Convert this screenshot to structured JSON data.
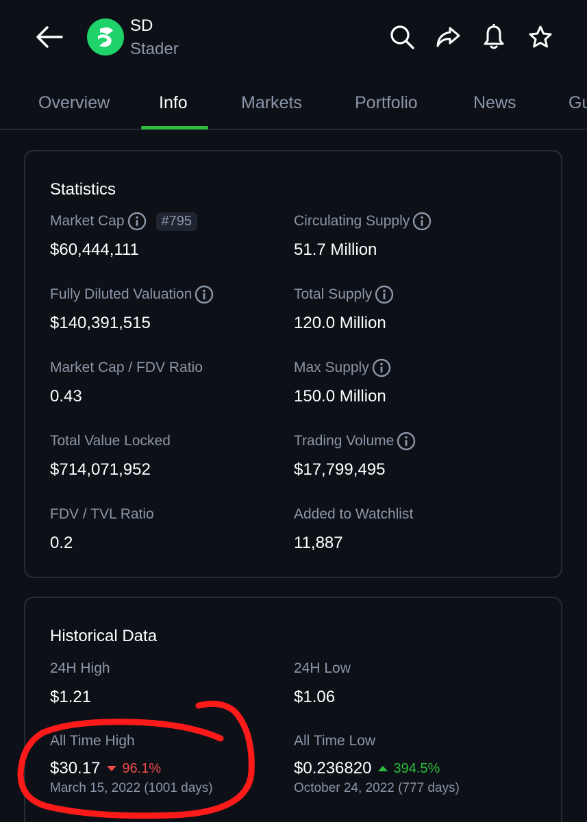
{
  "header": {
    "ticker": "SD",
    "name": "Stader",
    "brand_color": "#1fd36a",
    "icons": [
      "back-arrow-icon",
      "search-icon",
      "share-icon",
      "bell-icon",
      "star-icon"
    ]
  },
  "tabs": [
    {
      "label": "Overview",
      "active": false
    },
    {
      "label": "Info",
      "active": true
    },
    {
      "label": "Markets",
      "active": false
    },
    {
      "label": "Portfolio",
      "active": false
    },
    {
      "label": "News",
      "active": false
    },
    {
      "label": "Gu",
      "active": false
    }
  ],
  "accent_color": "#2ebd3d",
  "statistics": {
    "title": "Statistics",
    "market_cap": {
      "label": "Market Cap",
      "rank": "#795",
      "value": "$60,444,111"
    },
    "circulating_supply": {
      "label": "Circulating Supply",
      "value": "51.7 Million"
    },
    "fdv": {
      "label": "Fully Diluted Valuation",
      "value": "$140,391,515"
    },
    "total_supply": {
      "label": "Total Supply",
      "value": "120.0 Million"
    },
    "mc_fdv_ratio": {
      "label": "Market Cap / FDV Ratio",
      "value": "0.43"
    },
    "max_supply": {
      "label": "Max Supply",
      "value": "150.0 Million"
    },
    "tvl": {
      "label": "Total Value Locked",
      "value": "$714,071,952"
    },
    "trading_volume": {
      "label": "Trading Volume",
      "value": "$17,799,495"
    },
    "fdv_tvl_ratio": {
      "label": "FDV / TVL Ratio",
      "value": "0.2"
    },
    "watchlist": {
      "label": "Added to Watchlist",
      "value": "11,887"
    }
  },
  "historical": {
    "title": "Historical Data",
    "high_24h": {
      "label": "24H High",
      "value": "$1.21"
    },
    "low_24h": {
      "label": "24H Low",
      "value": "$1.06"
    },
    "ath": {
      "label": "All Time High",
      "value": "$30.17",
      "change": "96.1%",
      "direction": "down",
      "date": "March 15, 2022 (1001 days)"
    },
    "atl": {
      "label": "All Time Low",
      "value": "$0.236820",
      "change": "394.5%",
      "direction": "up",
      "date": "October 24, 2022 (777 days)"
    }
  },
  "colors": {
    "background": "#0d1117",
    "muted_text": "#8b96a8",
    "negative": "#f14a4a",
    "positive": "#2ebd3d",
    "annotation": "#ff1a1a"
  }
}
